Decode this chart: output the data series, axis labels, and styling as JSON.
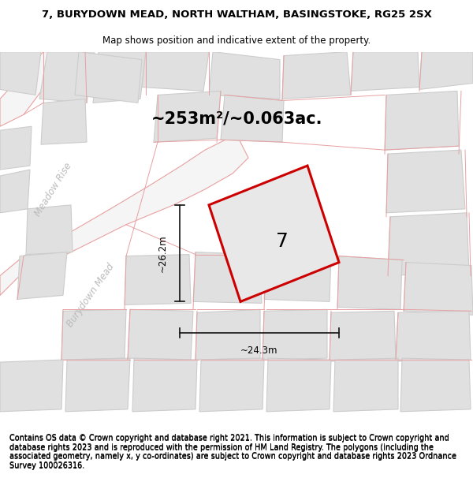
{
  "title": "7, BURYDOWN MEAD, NORTH WALTHAM, BASINGSTOKE, RG25 2SX",
  "subtitle": "Map shows position and indicative extent of the property.",
  "footer": "Contains OS data © Crown copyright and database right 2021. This information is subject to Crown copyright and database rights 2023 and is reproduced with the permission of HM Land Registry. The polygons (including the associated geometry, namely x, y co-ordinates) are subject to Crown copyright and database rights 2023 Ordnance Survey 100026316.",
  "area_text": "~253m²/~0.063ac.",
  "width_text": "~24.3m",
  "height_text": "~26.2m",
  "plot_number": "7",
  "map_bg": "#ececec",
  "block_fill": "#e0e0e0",
  "block_edge": "#cccccc",
  "road_fill": "#f5f5f5",
  "plot_edge": "#cc0000",
  "plot_fill": "#e8e8e8",
  "pink_line": "#e8a0a0",
  "street_color": "#bbbbbb",
  "dim_color": "#111111",
  "title_fontsize": 9.5,
  "subtitle_fontsize": 8.5,
  "footer_fontsize": 7.0,
  "area_fontsize": 15,
  "dim_fontsize": 8.5,
  "plot_num_fontsize": 18,
  "street_fontsize": 8.5
}
